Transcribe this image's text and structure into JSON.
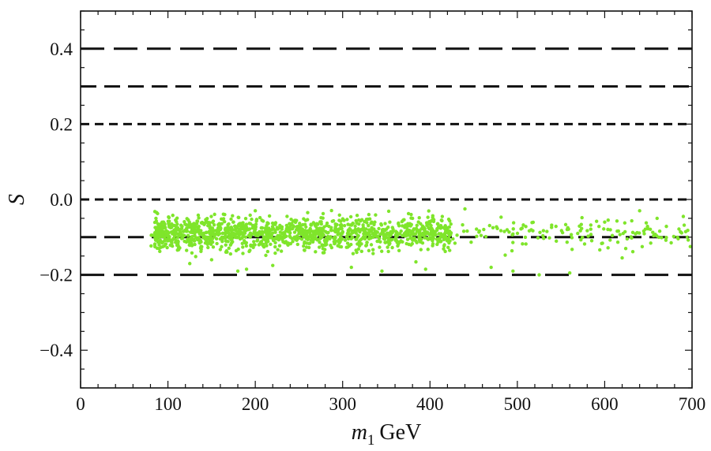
{
  "chart_data": {
    "type": "scatter",
    "xlabel_var": "m",
    "xlabel_sub": "1",
    "xlabel_unit": "GeV",
    "ylabel": "S",
    "xlim": [
      0,
      700
    ],
    "ylim": [
      -0.5,
      0.5
    ],
    "x_ticks": [
      "0",
      "100",
      "200",
      "300",
      "400",
      "500",
      "600",
      "700"
    ],
    "x_tick_values": [
      0,
      100,
      200,
      300,
      400,
      500,
      600,
      700
    ],
    "y_ticks": [
      "0.4",
      "0.2",
      "0.0",
      "−0.2",
      "−0.4"
    ],
    "y_tick_values": [
      0.4,
      0.2,
      0.0,
      -0.2,
      -0.4
    ],
    "grid": false,
    "reference_lines": [
      {
        "y": 0.4,
        "dash": "long"
      },
      {
        "y": 0.3,
        "dash": "medium"
      },
      {
        "y": 0.2,
        "dash": "short"
      },
      {
        "y": 0.0,
        "dash": "short"
      },
      {
        "y": -0.1,
        "dash": "medium"
      },
      {
        "y": -0.2,
        "dash": "long"
      }
    ],
    "series": [
      {
        "color": "#7fe52b",
        "marker": "dot",
        "x_range": [
          80,
          700
        ],
        "y_center": -0.09,
        "y_spread": 0.03,
        "y_min": -0.2,
        "y_max": -0.02,
        "point_count": 1500,
        "points": [
          [
            82,
            -0.095
          ],
          [
            90,
            -0.13
          ],
          [
            95,
            -0.06
          ],
          [
            110,
            -0.11
          ],
          [
            125,
            -0.17
          ],
          [
            150,
            -0.16
          ],
          [
            165,
            -0.04
          ],
          [
            180,
            -0.19
          ],
          [
            190,
            -0.185
          ],
          [
            200,
            -0.03
          ],
          [
            220,
            -0.175
          ],
          [
            260,
            -0.035
          ],
          [
            310,
            -0.18
          ],
          [
            330,
            -0.04
          ],
          [
            345,
            -0.19
          ],
          [
            380,
            -0.05
          ],
          [
            395,
            -0.185
          ],
          [
            440,
            -0.025
          ],
          [
            470,
            -0.18
          ],
          [
            495,
            -0.19
          ],
          [
            525,
            -0.2
          ],
          [
            560,
            -0.195
          ],
          [
            600,
            -0.06
          ],
          [
            620,
            -0.155
          ],
          [
            640,
            -0.03
          ],
          [
            660,
            -0.05
          ],
          [
            690,
            -0.045
          ],
          [
            698,
            -0.125
          ]
        ]
      }
    ]
  }
}
